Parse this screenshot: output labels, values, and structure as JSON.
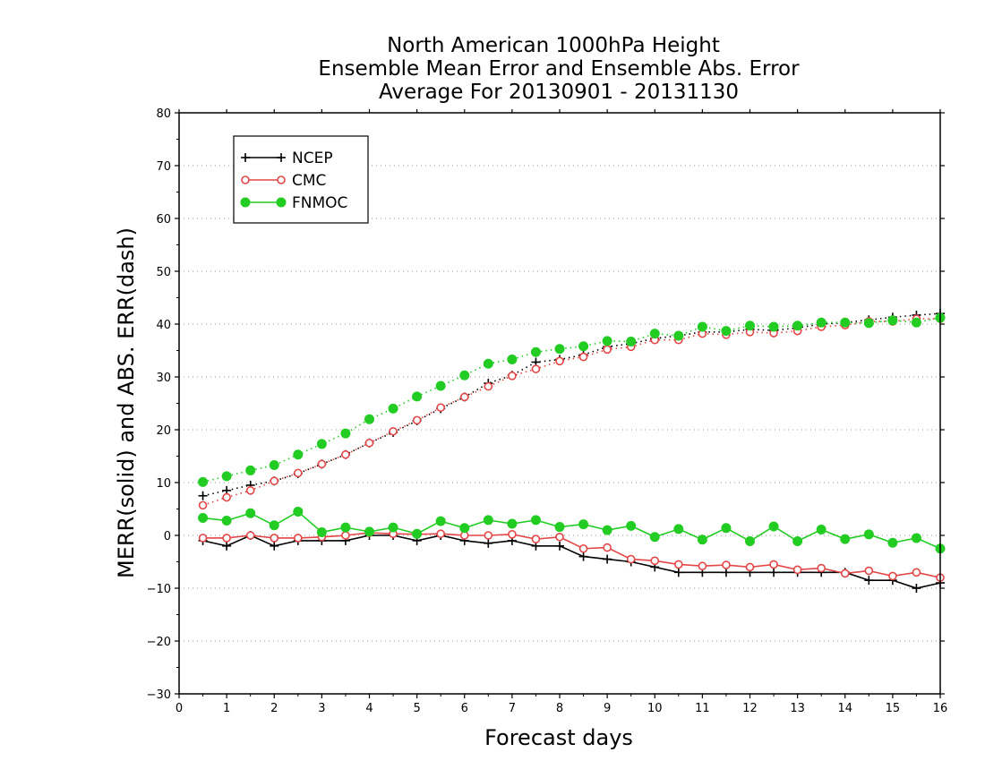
{
  "chart_data": {
    "type": "line",
    "title_lines": [
      "North American 1000hPa Height",
      "Ensemble Mean Error and Ensemble Abs. Error",
      "Average For 20130901 - 20131130"
    ],
    "xlabel": "Forecast days",
    "ylabel": "MERR(solid) and ABS. ERR(dash)",
    "xlim": [
      0,
      16
    ],
    "ylim": [
      -30,
      80
    ],
    "xticks": [
      "0",
      "1",
      "2",
      "3",
      "4",
      "5",
      "6",
      "7",
      "8",
      "9",
      "10",
      "11",
      "12",
      "13",
      "14",
      "15",
      "16"
    ],
    "yticks": [
      "80",
      "70",
      "60",
      "50",
      "40",
      "30",
      "20",
      "10",
      "0",
      "−10",
      "−20",
      "−30"
    ],
    "ytick_values": [
      80,
      70,
      60,
      50,
      40,
      30,
      20,
      10,
      0,
      -10,
      -20,
      -30
    ],
    "grid": "horizontal dotted",
    "legend_position": "top-left",
    "x": [
      0.5,
      1,
      1.5,
      2,
      2.5,
      3,
      3.5,
      4,
      4.5,
      5,
      5.5,
      6,
      6.5,
      7,
      7.5,
      8,
      8.5,
      9,
      9.5,
      10,
      10.5,
      11,
      11.5,
      12,
      12.5,
      13,
      13.5,
      14,
      14.5,
      15,
      15.5,
      16
    ],
    "series": [
      {
        "name": "NCEP",
        "color": "#000000",
        "marker": "plus",
        "merr": [
          -1,
          -2,
          0,
          -2,
          -1,
          -1,
          -1,
          0,
          0,
          -1,
          0,
          -1,
          -1.5,
          -1,
          -2,
          -2,
          -4,
          -4.5,
          -5,
          -6,
          -7,
          -7,
          -7,
          -7,
          -7,
          -7,
          -7,
          -7,
          -8.5,
          -8.5,
          -10,
          -9
        ],
        "abs_err": [
          7.5,
          8.5,
          9.5,
          10.3,
          11.7,
          13.5,
          15.3,
          17.5,
          19.5,
          21.7,
          24,
          26.2,
          28.8,
          30.3,
          32.8,
          33.3,
          34.2,
          35.7,
          36.3,
          37.3,
          37.8,
          38.5,
          38.5,
          39,
          38.8,
          39.3,
          40,
          40.3,
          40.8,
          41.3,
          41.7,
          42
        ]
      },
      {
        "name": "CMC",
        "color": "#e34646",
        "marker": "open-circle",
        "merr": [
          -0.5,
          -0.5,
          0,
          -0.5,
          -0.5,
          -0.3,
          0,
          0.5,
          0.3,
          0.2,
          0.3,
          0,
          0,
          0.2,
          -0.7,
          -0.3,
          -2.5,
          -2.3,
          -4.5,
          -4.8,
          -5.5,
          -5.8,
          -5.6,
          -6,
          -5.5,
          -6.5,
          -6.2,
          -7.2,
          -6.7,
          -7.7,
          -7,
          -8
        ],
        "abs_err": [
          5.7,
          7.2,
          8.5,
          10.3,
          11.8,
          13.5,
          15.3,
          17.5,
          19.7,
          21.8,
          24.2,
          26.2,
          28.2,
          30.2,
          31.5,
          33,
          33.8,
          35.2,
          35.7,
          37,
          37,
          38.2,
          38,
          38.5,
          38.3,
          38.7,
          39.5,
          39.8,
          40.5,
          40.5,
          41,
          41
        ]
      },
      {
        "name": "FNMOC",
        "color": "#22cc22",
        "marker": "filled-circle",
        "merr": [
          3.3,
          2.8,
          4.2,
          1.9,
          4.5,
          0.6,
          1.5,
          0.7,
          1.5,
          0.3,
          2.7,
          1.4,
          2.9,
          2.2,
          2.9,
          1.6,
          2.1,
          1,
          1.8,
          -0.3,
          1.2,
          -0.8,
          1.4,
          -1.1,
          1.7,
          -1.1,
          1.1,
          -0.7,
          0.2,
          -1.4,
          -0.5,
          -2.5
        ],
        "abs_err": [
          10.1,
          11.2,
          12.3,
          13.3,
          15.3,
          17.3,
          19.3,
          22,
          24,
          26.3,
          28.3,
          30.3,
          32.5,
          33.3,
          34.7,
          35.3,
          35.8,
          36.8,
          36.7,
          38.2,
          37.8,
          39.5,
          38.7,
          39.7,
          39.5,
          39.7,
          40.3,
          40.3,
          40.2,
          40.7,
          40.3,
          41.2
        ]
      }
    ]
  }
}
